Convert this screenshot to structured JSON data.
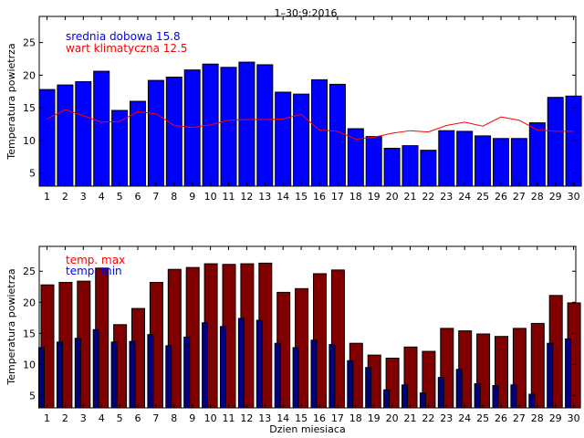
{
  "chart_data": [
    {
      "type": "bar",
      "title": "1–30:9:2016",
      "xlabel": "",
      "ylabel": "Temperatura powietrza",
      "ylim": [
        3,
        29
      ],
      "yticks": [
        5,
        10,
        15,
        20,
        25
      ],
      "categories": [
        "1",
        "2",
        "3",
        "4",
        "5",
        "6",
        "7",
        "8",
        "9",
        "10",
        "11",
        "12",
        "13",
        "14",
        "15",
        "16",
        "17",
        "18",
        "19",
        "20",
        "21",
        "22",
        "23",
        "24",
        "25",
        "26",
        "27",
        "28",
        "29",
        "30"
      ],
      "series": [
        {
          "name": "srednia dobowa",
          "type": "bar",
          "color": "#0000ff",
          "values": [
            17.8,
            18.5,
            19.0,
            20.6,
            14.6,
            16.0,
            19.2,
            19.7,
            20.8,
            21.7,
            21.2,
            22.0,
            21.6,
            17.4,
            17.1,
            19.3,
            18.6,
            11.8,
            10.6,
            8.8,
            9.2,
            8.5,
            11.5,
            11.4,
            10.7,
            10.3,
            10.3,
            12.7,
            16.6,
            16.8
          ]
        },
        {
          "name": "wart klimatyczna",
          "type": "line",
          "color": "#ff0000",
          "values": [
            13.3,
            14.7,
            13.8,
            12.8,
            12.9,
            14.4,
            14.1,
            12.3,
            12.0,
            12.4,
            13.1,
            13.2,
            13.2,
            13.3,
            14.0,
            11.6,
            11.4,
            10.2,
            10.5,
            11.1,
            11.5,
            11.3,
            12.3,
            12.8,
            12.2,
            13.6,
            13.1,
            11.6,
            11.4,
            11.4
          ]
        }
      ],
      "legend": [
        {
          "label": "srednia dobowa 15.8",
          "color": "#0000ff"
        },
        {
          "label": "wart klimatyczna 12.5",
          "color": "#ff0000"
        }
      ]
    },
    {
      "type": "bar",
      "title": "",
      "xlabel": "Dzien miesiaca",
      "ylabel": "Temperatura powietrza",
      "ylim": [
        3,
        29
      ],
      "yticks": [
        5,
        10,
        15,
        20,
        25
      ],
      "categories": [
        "1",
        "2",
        "3",
        "4",
        "5",
        "6",
        "7",
        "8",
        "9",
        "10",
        "11",
        "12",
        "13",
        "14",
        "15",
        "16",
        "17",
        "18",
        "19",
        "20",
        "21",
        "22",
        "23",
        "24",
        "25",
        "26",
        "27",
        "28",
        "29",
        "30"
      ],
      "series": [
        {
          "name": "temp. max",
          "color": "#800000",
          "values": [
            22.8,
            23.2,
            23.4,
            25.5,
            16.4,
            19.0,
            23.2,
            25.3,
            25.6,
            26.2,
            26.1,
            26.2,
            26.3,
            21.6,
            22.2,
            24.6,
            25.2,
            13.4,
            11.5,
            11.0,
            12.8,
            12.1,
            15.8,
            15.4,
            14.9,
            14.5,
            15.8,
            16.6,
            21.1,
            19.9
          ]
        },
        {
          "name": "temp. min",
          "color": "#000080",
          "values": [
            12.7,
            13.6,
            14.2,
            15.6,
            13.6,
            13.7,
            14.8,
            13.0,
            14.4,
            16.7,
            16.1,
            17.4,
            17.1,
            13.4,
            12.7,
            13.9,
            13.2,
            10.6,
            9.5,
            5.9,
            6.7,
            5.4,
            7.9,
            9.2,
            6.9,
            6.6,
            6.7,
            5.2,
            13.4,
            14.1
          ]
        }
      ],
      "legend": [
        {
          "label": "temp. max",
          "color": "#ff0000"
        },
        {
          "label": "temp. min",
          "color": "#0000ff"
        }
      ]
    }
  ]
}
